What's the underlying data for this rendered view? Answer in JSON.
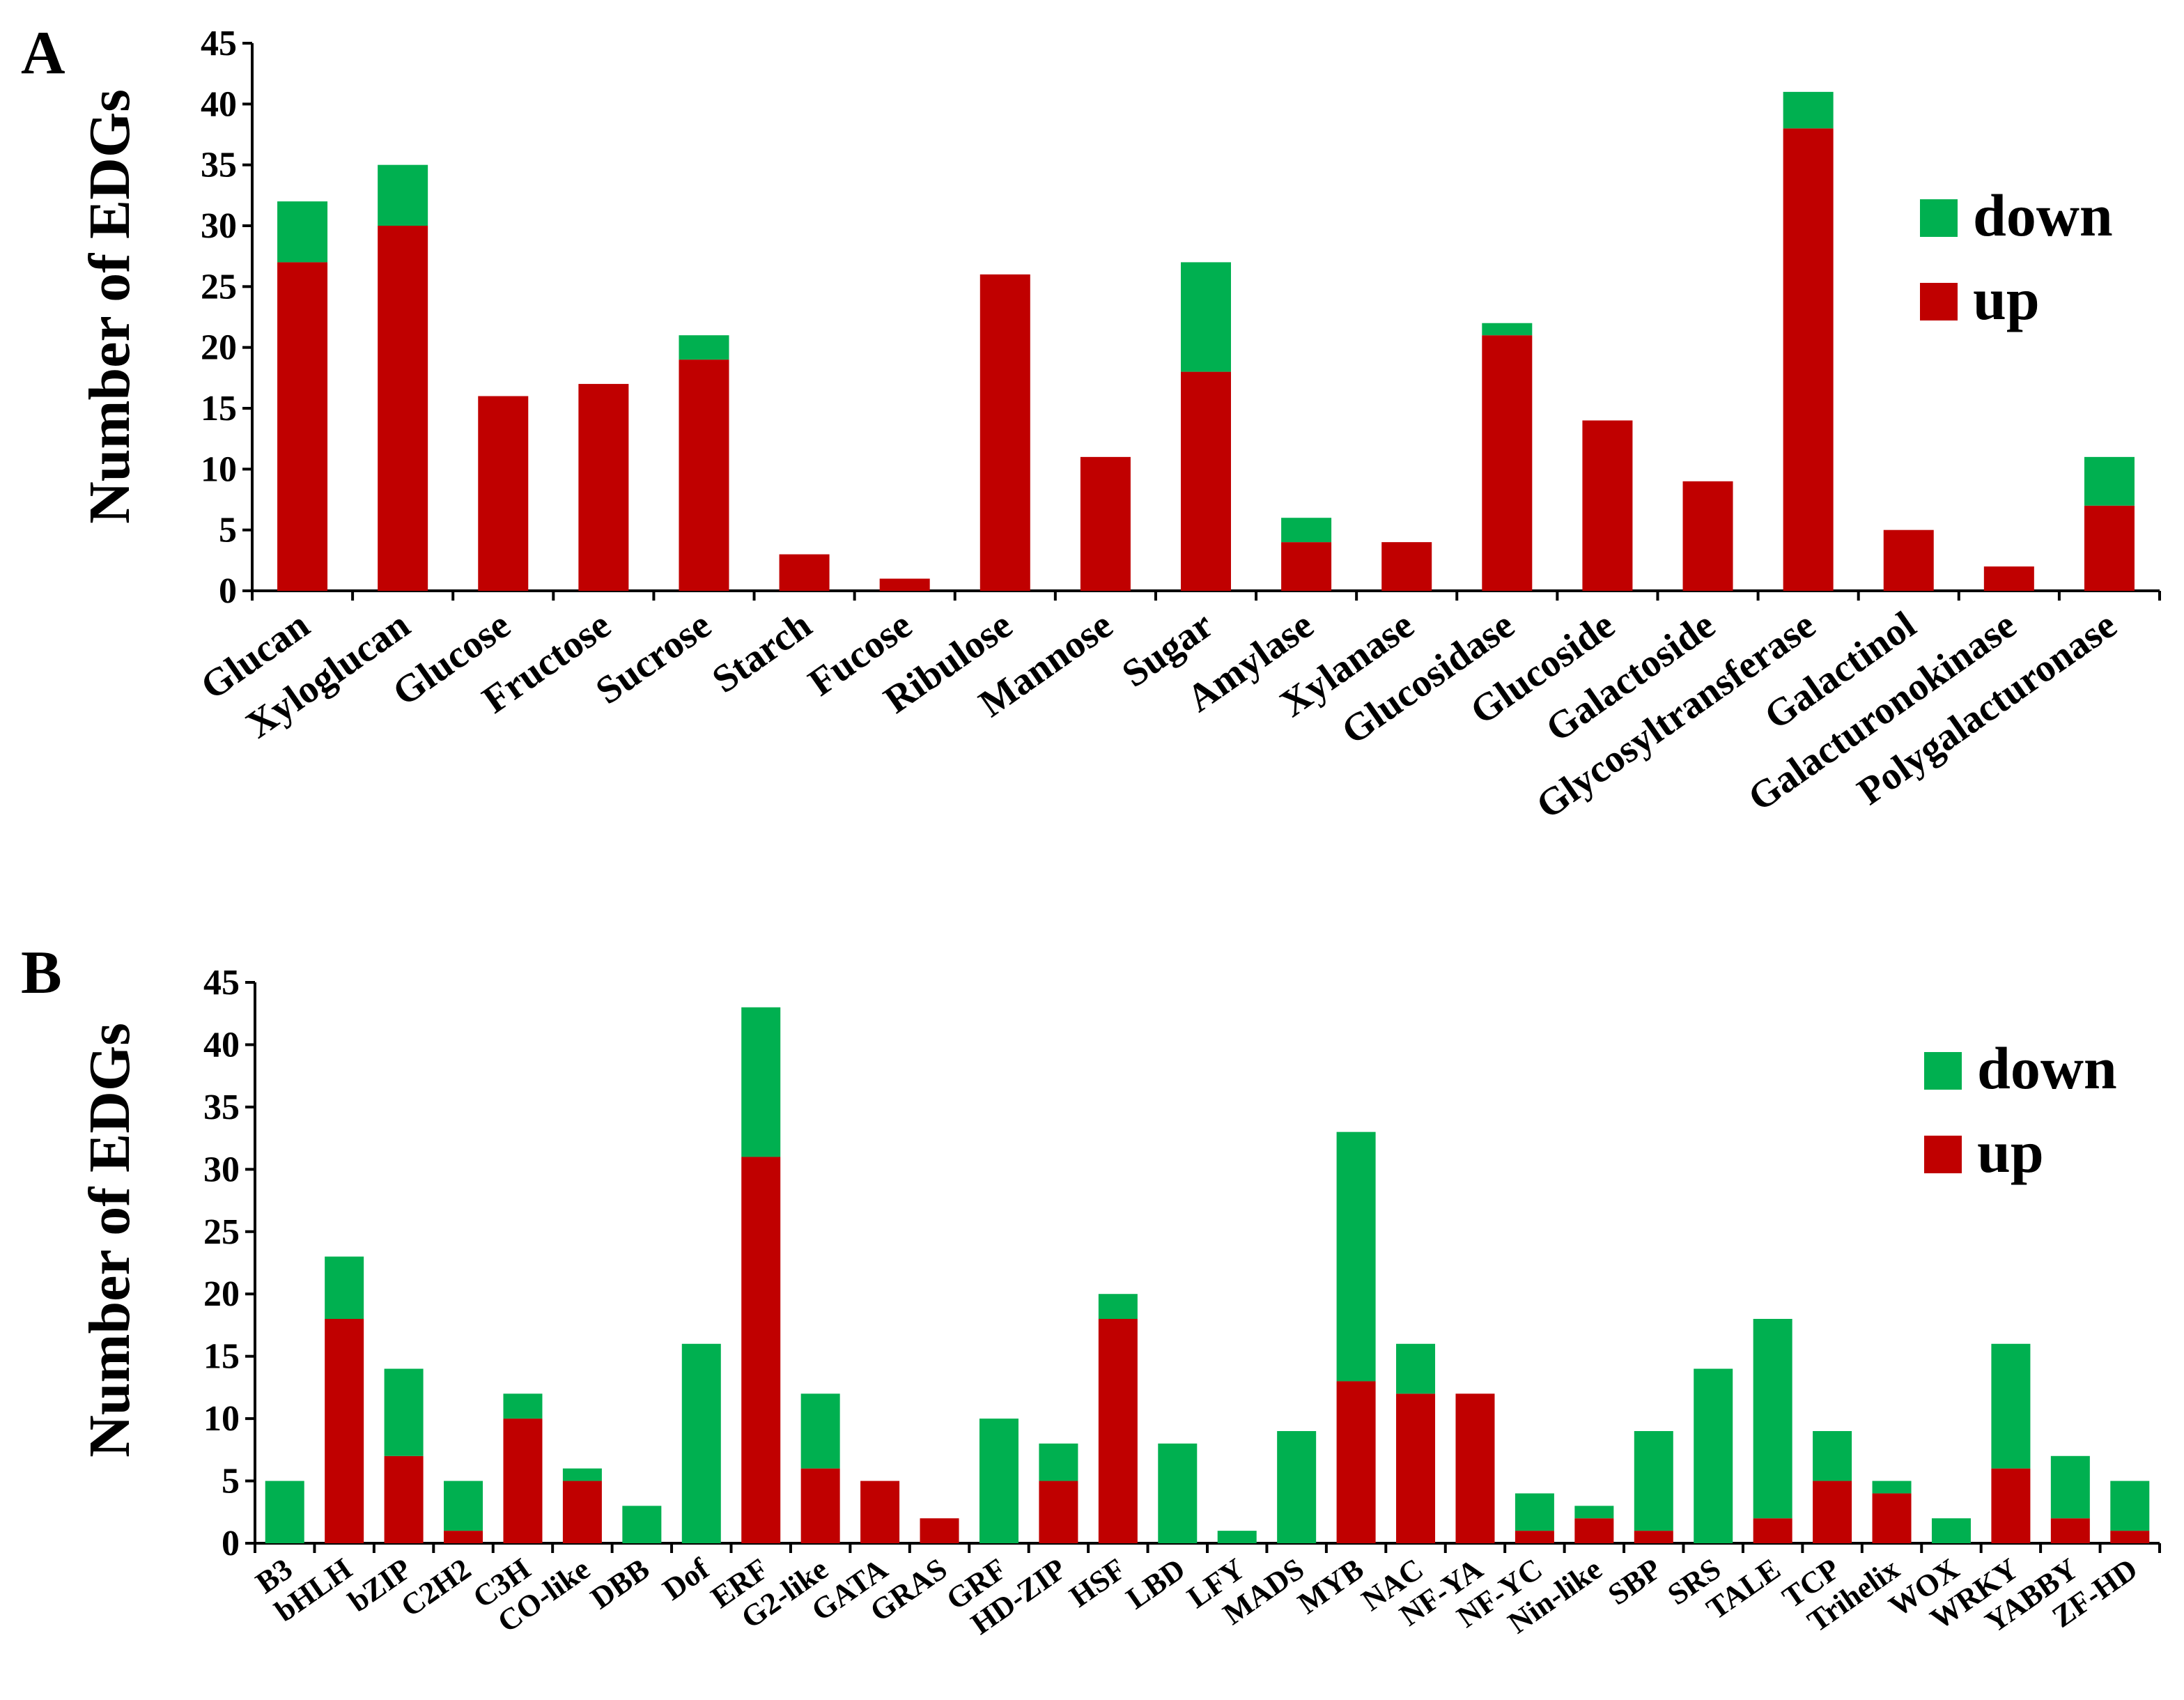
{
  "colors": {
    "up": "#C00000",
    "down": "#00B050"
  },
  "chart_data": [
    {
      "type": "bar",
      "stacked": true,
      "panel_label": "A",
      "title": "",
      "xlabel": "",
      "ylabel": "Number of EDGs",
      "ylim": [
        0,
        45
      ],
      "yticks": [
        0,
        5,
        10,
        15,
        20,
        25,
        30,
        35,
        40,
        45
      ],
      "legend": [
        "down",
        "up"
      ],
      "legend_position": "right",
      "categories": [
        "Glucan",
        "Xyloglucan",
        "Glucose",
        "Fructose",
        "Sucrose",
        "Starch",
        "Fucose",
        "Ribulose",
        "Mannose",
        "Sugar",
        "Amylase",
        "Xylanase",
        "Glucosidase",
        "Glucoside",
        "Galactoside",
        "Glycosyltransferase",
        "Galactinol",
        "Galacturonokinase",
        "Polygalacturonase"
      ],
      "series": [
        {
          "name": "up",
          "values": [
            27,
            30,
            16,
            17,
            19,
            3,
            1,
            26,
            11,
            18,
            4,
            4,
            21,
            14,
            9,
            38,
            5,
            2,
            7
          ]
        },
        {
          "name": "down",
          "values": [
            5,
            5,
            0,
            0,
            2,
            0,
            0,
            0,
            0,
            9,
            2,
            0,
            1,
            0,
            0,
            3,
            0,
            0,
            4
          ]
        }
      ]
    },
    {
      "type": "bar",
      "stacked": true,
      "panel_label": "B",
      "title": "",
      "xlabel": "",
      "ylabel": "Number of EDGs",
      "ylim": [
        0,
        45
      ],
      "yticks": [
        0,
        5,
        10,
        15,
        20,
        25,
        30,
        35,
        40,
        45
      ],
      "legend": [
        "down",
        "up"
      ],
      "legend_position": "right",
      "categories": [
        "B3",
        "bHLH",
        "bZIP",
        "C2H2",
        "C3H",
        "CO-like",
        "DBB",
        "Dof",
        "ERF",
        "G2-like",
        "GATA",
        "GRAS",
        "GRF",
        "HD-ZIP",
        "HSF",
        "LBD",
        "LFY",
        "MADS",
        "MYB",
        "NAC",
        "NF-YA",
        "NF-YC",
        "Nin-like",
        "SBP",
        "SRS",
        "TALE",
        "TCP",
        "Trihelix",
        "WOX",
        "WRKY",
        "YABBY",
        "ZF-HD"
      ],
      "series": [
        {
          "name": "up",
          "values": [
            0,
            18,
            7,
            1,
            10,
            5,
            0,
            0,
            31,
            6,
            5,
            2,
            0,
            5,
            18,
            0,
            0,
            0,
            13,
            12,
            12,
            1,
            2,
            1,
            0,
            2,
            5,
            4,
            0,
            6,
            2,
            1
          ]
        },
        {
          "name": "down",
          "values": [
            5,
            5,
            7,
            4,
            2,
            1,
            3,
            16,
            12,
            6,
            0,
            0,
            10,
            3,
            2,
            8,
            1,
            9,
            20,
            4,
            0,
            3,
            1,
            8,
            14,
            16,
            4,
            1,
            2,
            10,
            5,
            4
          ]
        }
      ]
    }
  ]
}
